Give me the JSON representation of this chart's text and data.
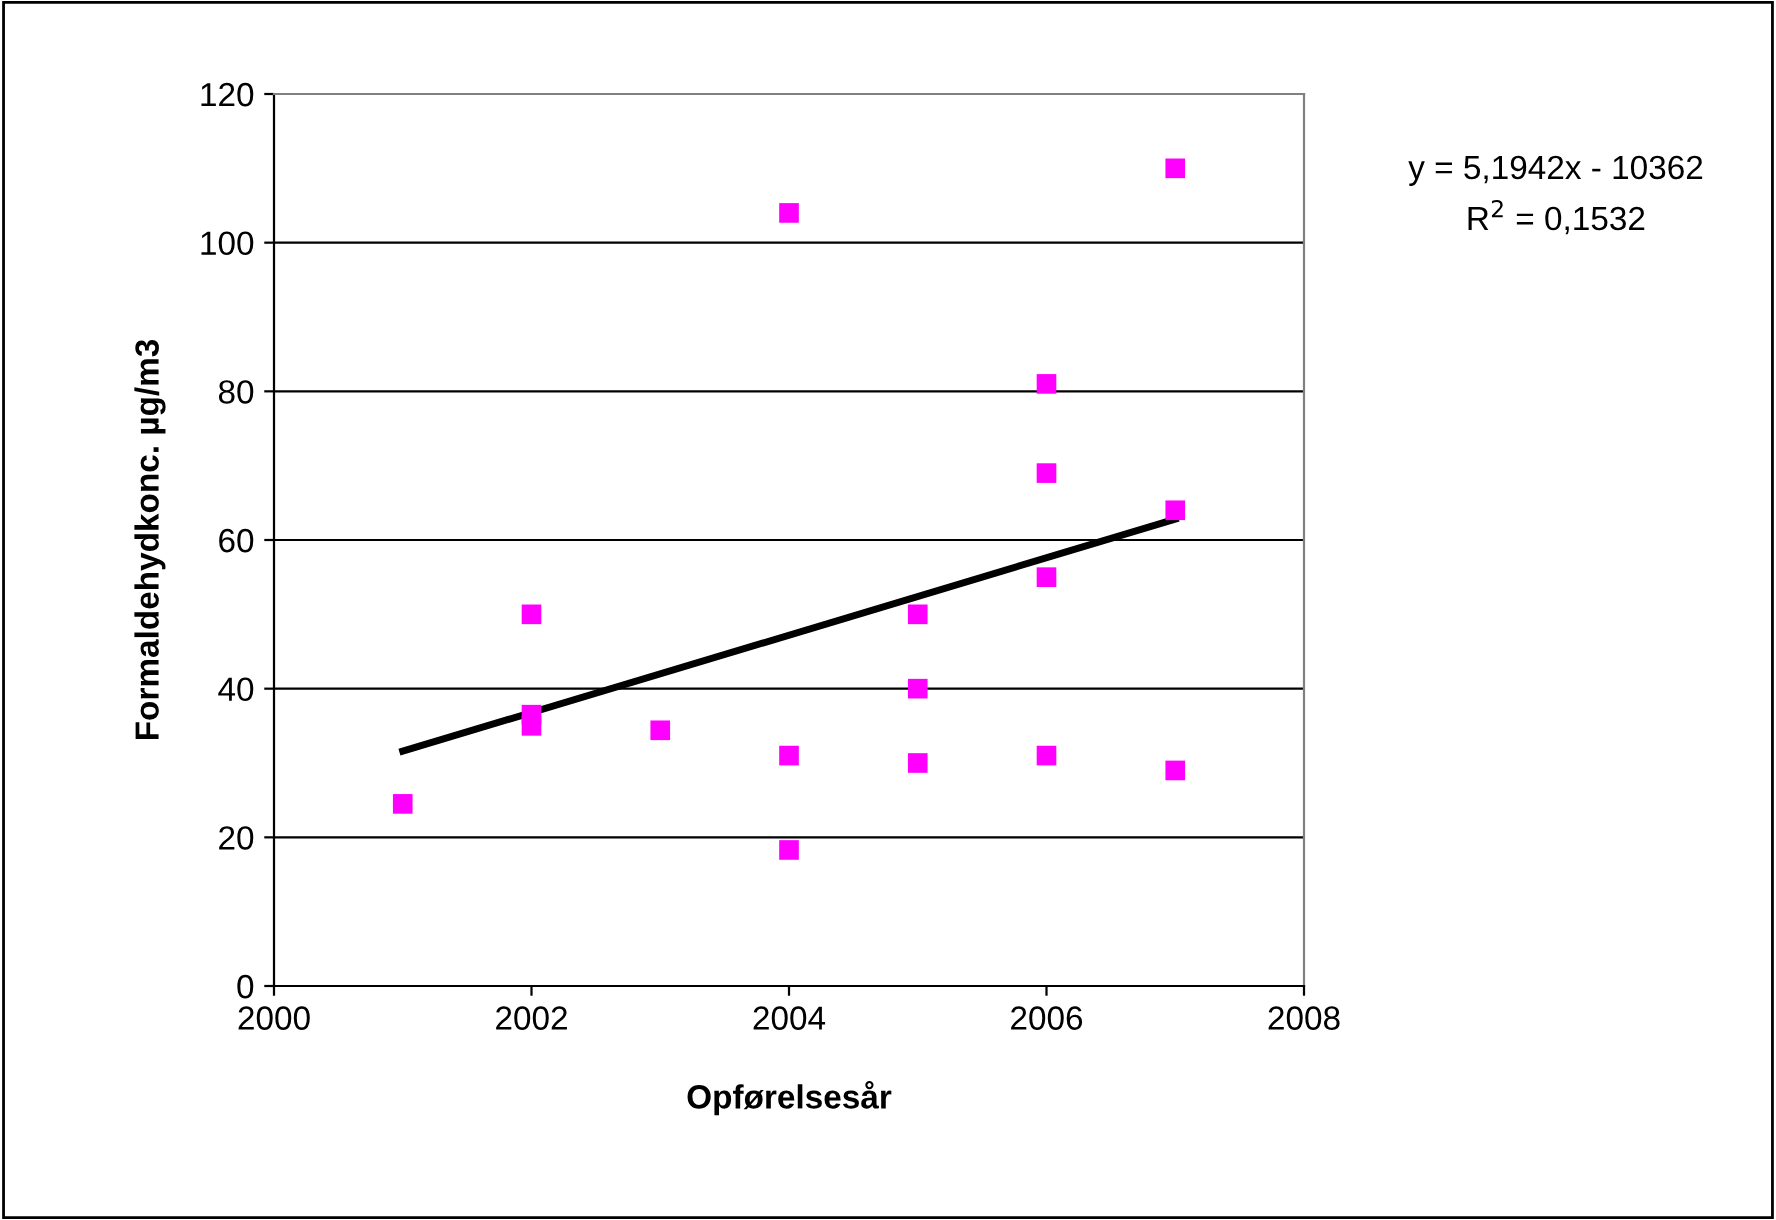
{
  "chart_data": {
    "type": "scatter",
    "xlabel": "Opførelsesår",
    "ylabel": "Formaldehydkonc. µg/m3",
    "annotations": [
      "y = 5,1942x - 10362\nR$^{2}$ = 0,1532"
    ],
    "series": [
      {
        "color": "#ff00ff",
        "marker": "square",
        "x": [
          2001,
          2002,
          2002,
          2002,
          2003,
          2004,
          2004,
          2004,
          2005,
          2005,
          2005,
          2006,
          2006,
          2006,
          2006,
          2007,
          2007,
          2007
        ],
        "values": [
          24.5,
          50,
          36.5,
          35,
          34.4,
          104,
          31,
          18.3,
          50,
          40,
          30,
          81,
          69,
          55,
          31,
          110,
          64,
          29
        ]
      },
      {
        "type": "line",
        "color": "#000000",
        "marker": "none",
        "x": [
          2001,
          2007
        ],
        "values": [
          31.6,
          62.8
        ]
      }
    ],
    "xlim": [
      2000,
      2008
    ],
    "xticks": [
      2000,
      2002,
      2004,
      2006,
      2008
    ],
    "ylim": [
      0,
      120
    ],
    "yticks": [
      0,
      20,
      40,
      60,
      80,
      100,
      120
    ],
    "grid": "y",
    "legend": false
  }
}
